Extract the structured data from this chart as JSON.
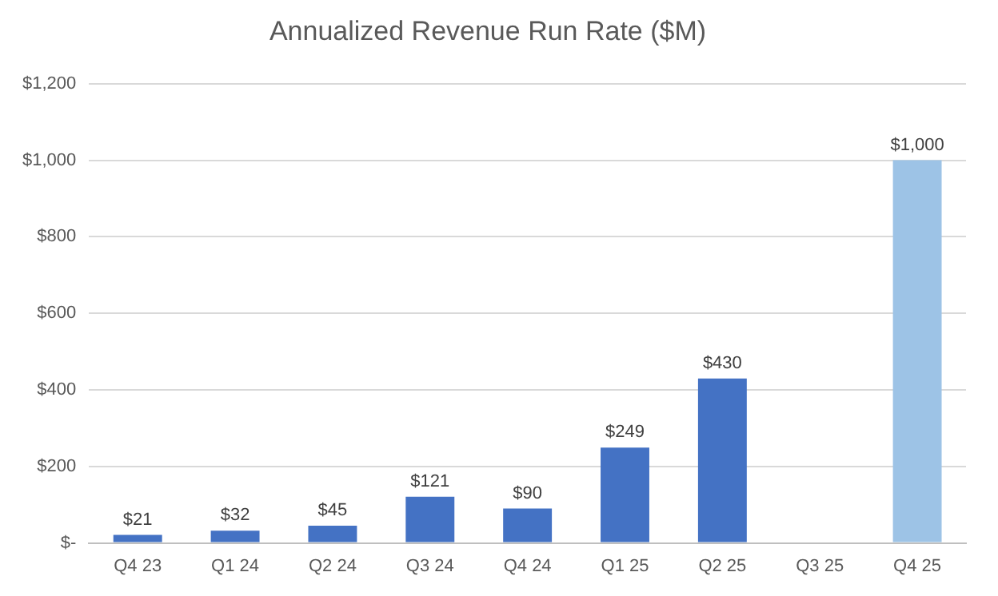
{
  "chart_data": {
    "type": "bar",
    "title": "Annualized Revenue Run Rate ($M)",
    "categories": [
      "Q4 23",
      "Q1 24",
      "Q2 24",
      "Q3 24",
      "Q4 24",
      "Q1 25",
      "Q2 25",
      "Q3 25",
      "Q4 25"
    ],
    "values": [
      21,
      32,
      45,
      121,
      90,
      249,
      430,
      null,
      1000
    ],
    "colors": [
      "#4472c4",
      "#4472c4",
      "#4472c4",
      "#4472c4",
      "#4472c4",
      "#4472c4",
      "#4472c4",
      "#4472c4",
      "#9dc3e6"
    ],
    "value_labels": [
      "$21",
      "$32",
      "$45",
      "$121",
      "$90",
      "$249",
      "$430",
      null,
      "$1,000"
    ],
    "ylim": [
      0,
      1200
    ],
    "yticks": [
      {
        "value": 0,
        "label": "$-"
      },
      {
        "value": 200,
        "label": "$200"
      },
      {
        "value": 400,
        "label": "$400"
      },
      {
        "value": 600,
        "label": "$600"
      },
      {
        "value": 800,
        "label": "$800"
      },
      {
        "value": 1000,
        "label": "$1,000"
      },
      {
        "value": 1200,
        "label": "$1,200"
      }
    ],
    "grid": "y",
    "legend": false
  }
}
